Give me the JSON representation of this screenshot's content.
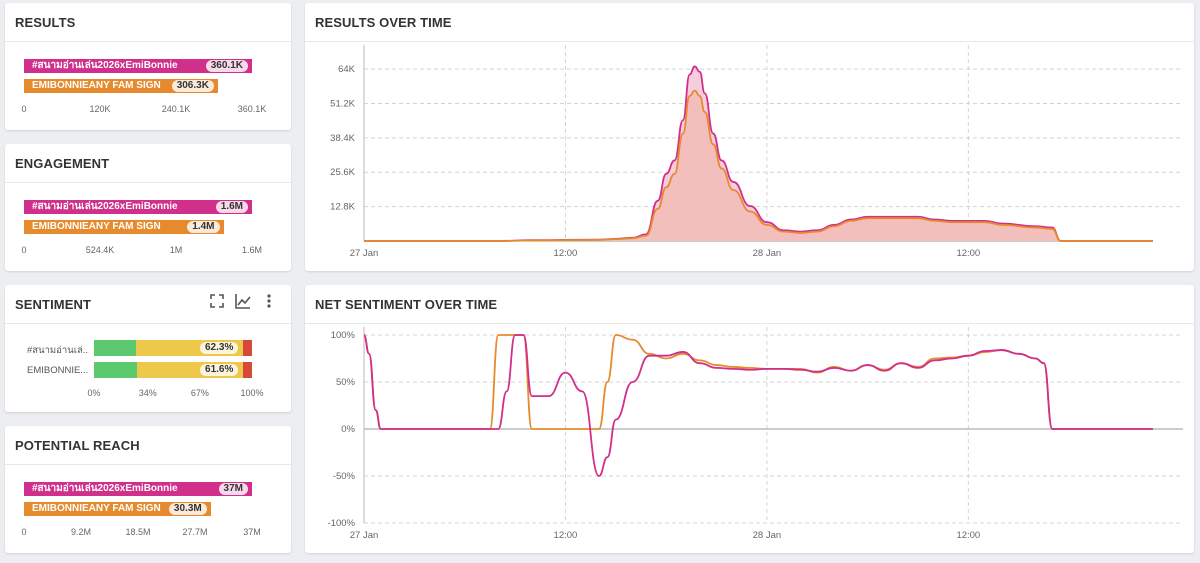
{
  "colors": {
    "magenta": "#d02f8b",
    "orange": "#e68a2e",
    "green": "#5cc86f",
    "yellow": "#eec84a",
    "red": "#d5493b",
    "fill": "#f2bcb6"
  },
  "results": {
    "title": "RESULTS",
    "bars": [
      {
        "label": "#สนามอ่านเล่น2026xEmiBonnie",
        "value_label": "360.1K",
        "value": 360.1,
        "color": "#d02f8b"
      },
      {
        "label": "EMIBONNIEANY FAM SIGN",
        "value_label": "306.3K",
        "value": 306.3,
        "color": "#e68a2e"
      }
    ],
    "axis_max": 360.1,
    "ticks": [
      "0",
      "120K",
      "240.1K",
      "360.1K"
    ]
  },
  "engagement": {
    "title": "ENGAGEMENT",
    "bars": [
      {
        "label": "#สนามอ่านเล่น2026xEmiBonnie",
        "value_label": "1.6M",
        "value": 1.6,
        "color": "#d02f8b"
      },
      {
        "label": "EMIBONNIEANY FAM SIGN",
        "value_label": "1.4M",
        "value": 1.4,
        "color": "#e68a2e"
      }
    ],
    "axis_max": 1.6,
    "ticks": [
      "0",
      "524.4K",
      "1M",
      "1.6M"
    ]
  },
  "sentiment": {
    "title": "SENTIMENT",
    "icons": [
      "expand-icon",
      "line-chart-icon",
      "more-vertical-icon"
    ],
    "rows": [
      {
        "label": "#สนามอ่านเล่...",
        "positive": 0.24,
        "neutral": 0.623,
        "negative": 0.05,
        "neutral_label": "62.3%"
      },
      {
        "label": "EMIBONNIE...",
        "positive": 0.25,
        "neutral": 0.616,
        "negative": 0.05,
        "neutral_label": "61.6%"
      }
    ],
    "ticks": [
      "0%",
      "34%",
      "67%",
      "100%"
    ]
  },
  "reach": {
    "title": "POTENTIAL REACH",
    "bars": [
      {
        "label": "#สนามอ่านเล่น2026xEmiBonnie",
        "value_label": "37M",
        "value": 37,
        "color": "#d02f8b"
      },
      {
        "label": "EMIBONNIEANY FAM SIGN",
        "value_label": "30.3M",
        "value": 30.3,
        "color": "#e68a2e"
      }
    ],
    "axis_max": 37,
    "ticks": [
      "0",
      "9.2M",
      "18.5M",
      "27.7M",
      "37M"
    ]
  },
  "chart_data": [
    {
      "type": "area",
      "title": "RESULTS OVER TIME",
      "ylim": [
        0,
        70000
      ],
      "yticks": [
        12800,
        25600,
        38400,
        51200,
        64000
      ],
      "ytick_labels": [
        "12.8K",
        "25.6K",
        "38.4K",
        "51.2K",
        "64K"
      ],
      "xlim": [
        0,
        47
      ],
      "xticks": [
        0,
        12,
        24,
        36
      ],
      "xtick_labels": [
        "27 Jan",
        "12:00",
        "28 Jan",
        "12:00"
      ],
      "grid": true,
      "series": [
        {
          "color": "#d02f8b",
          "x": [
            0,
            8,
            10,
            14,
            15,
            16,
            16.8,
            17.5,
            18,
            18.5,
            19,
            19.4,
            19.7,
            20,
            20.3,
            20.8,
            21.3,
            22,
            23,
            24,
            25,
            26,
            27,
            28,
            29,
            30,
            31,
            32,
            33,
            34,
            35,
            36,
            37,
            38,
            40,
            41,
            41.5,
            42,
            44,
            47
          ],
          "y": [
            0,
            0,
            300,
            500,
            800,
            1200,
            2500,
            15000,
            25000,
            30000,
            45000,
            62000,
            65000,
            63000,
            55000,
            40000,
            30000,
            22000,
            13000,
            7000,
            4000,
            3500,
            4000,
            6000,
            8000,
            9000,
            9000,
            9000,
            9000,
            8000,
            7500,
            7500,
            7500,
            6500,
            5500,
            5000,
            0,
            0,
            0,
            0
          ]
        },
        {
          "color": "#e68a2e",
          "x": [
            0,
            8,
            10,
            14,
            15,
            16,
            16.8,
            17.5,
            18,
            18.5,
            19,
            19.4,
            19.7,
            20,
            20.3,
            20.8,
            21.3,
            22,
            23,
            24,
            25,
            26,
            27,
            28,
            29,
            30,
            31,
            32,
            33,
            34,
            35,
            36,
            37,
            38,
            40,
            41,
            41.5,
            42,
            44,
            47
          ],
          "y": [
            0,
            0,
            200,
            400,
            700,
            1000,
            2000,
            12000,
            20000,
            25000,
            40000,
            54000,
            56000,
            54000,
            48000,
            36000,
            27000,
            19000,
            11000,
            6000,
            3500,
            3000,
            3500,
            5500,
            7500,
            8500,
            8500,
            8500,
            8500,
            7500,
            7000,
            7000,
            7000,
            6000,
            5000,
            4500,
            0,
            0,
            0,
            0
          ]
        }
      ]
    },
    {
      "type": "line",
      "title": "NET SENTIMENT OVER TIME",
      "ylim": [
        -100,
        100
      ],
      "yticks": [
        100,
        50,
        0,
        -50,
        -100
      ],
      "ytick_labels": [
        "100%",
        "50%",
        "0%",
        "-50%",
        "-100%"
      ],
      "xlim": [
        0,
        47
      ],
      "xticks": [
        0,
        12,
        24,
        36
      ],
      "xtick_labels": [
        "27 Jan",
        "12:00",
        "28 Jan",
        "12:00"
      ],
      "grid": true,
      "series": [
        {
          "color": "#e68a2e",
          "x": [
            0,
            0.3,
            0.7,
            1,
            7,
            7.5,
            8,
            8.5,
            9,
            9.5,
            10,
            11,
            12,
            13,
            14,
            14.5,
            15,
            16,
            17,
            18,
            19,
            20,
            21,
            22,
            23,
            24,
            25,
            26,
            27,
            28,
            29,
            30,
            31,
            32,
            33,
            34,
            35,
            36,
            37,
            38,
            39,
            40,
            40.5,
            41,
            41.5,
            47
          ],
          "y": [
            100,
            80,
            20,
            0,
            0,
            0,
            100,
            100,
            100,
            100,
            0,
            0,
            0,
            0,
            0,
            50,
            100,
            95,
            80,
            75,
            80,
            73,
            68,
            66,
            65,
            64,
            64,
            64,
            60,
            66,
            62,
            68,
            63,
            70,
            66,
            75,
            76,
            78,
            82,
            84,
            80,
            75,
            70,
            0,
            0,
            0
          ]
        },
        {
          "color": "#d02f8b",
          "x": [
            0,
            0.3,
            0.7,
            1,
            7,
            7.5,
            8,
            8.5,
            9,
            9.5,
            10,
            11,
            12,
            13,
            14,
            14.5,
            15,
            16,
            17,
            18,
            19,
            20,
            21,
            22,
            23,
            24,
            25,
            26,
            27,
            28,
            29,
            30,
            31,
            32,
            33,
            34,
            35,
            36,
            37,
            38,
            39,
            40,
            40.5,
            41,
            41.5,
            47
          ],
          "y": [
            100,
            80,
            20,
            0,
            0,
            0,
            0,
            40,
            100,
            100,
            35,
            35,
            60,
            40,
            -50,
            -30,
            10,
            50,
            78,
            78,
            82,
            70,
            65,
            64,
            63,
            64,
            64,
            63,
            61,
            65,
            62,
            68,
            62,
            70,
            65,
            73,
            75,
            78,
            83,
            84,
            80,
            75,
            70,
            0,
            0,
            0
          ]
        }
      ]
    }
  ]
}
